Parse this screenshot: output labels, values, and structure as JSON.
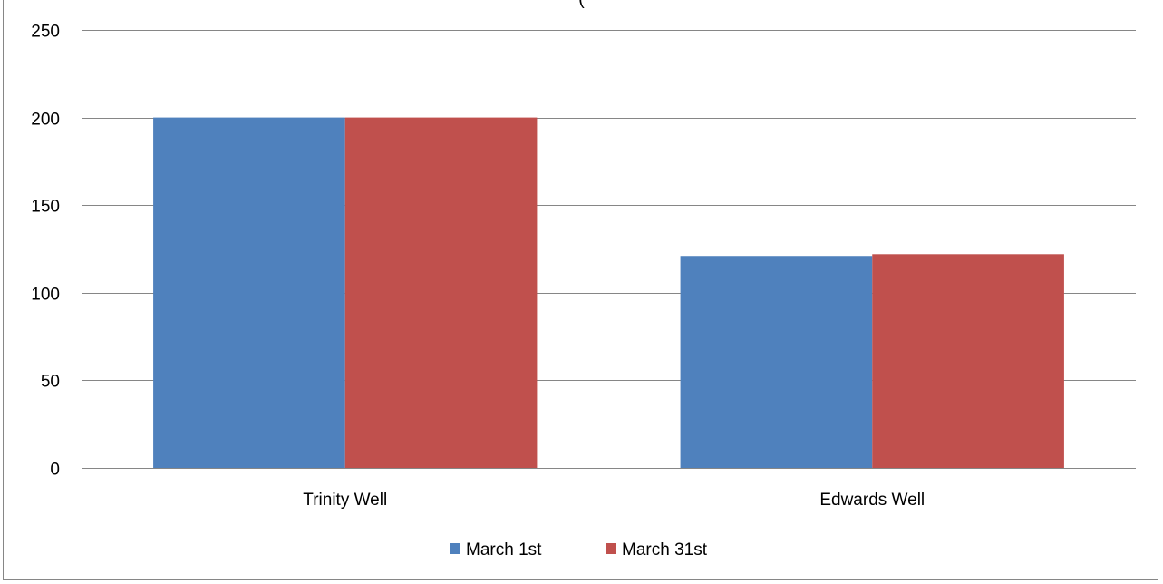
{
  "chart_data": {
    "type": "bar",
    "title": "(",
    "categories": [
      "Trinity Well",
      "Edwards Well"
    ],
    "series": [
      {
        "name": "March 1st",
        "color": "#4F81BD",
        "values": [
          200,
          121
        ]
      },
      {
        "name": "March 31st",
        "color": "#C0504D",
        "values": [
          200,
          122
        ]
      }
    ],
    "yticks": [
      0,
      50,
      100,
      150,
      200,
      250
    ],
    "ylim": [
      0,
      250
    ],
    "xlabel": "",
    "ylabel": "",
    "grid": true,
    "legend_position": "bottom",
    "gridline_color": "#868686"
  }
}
